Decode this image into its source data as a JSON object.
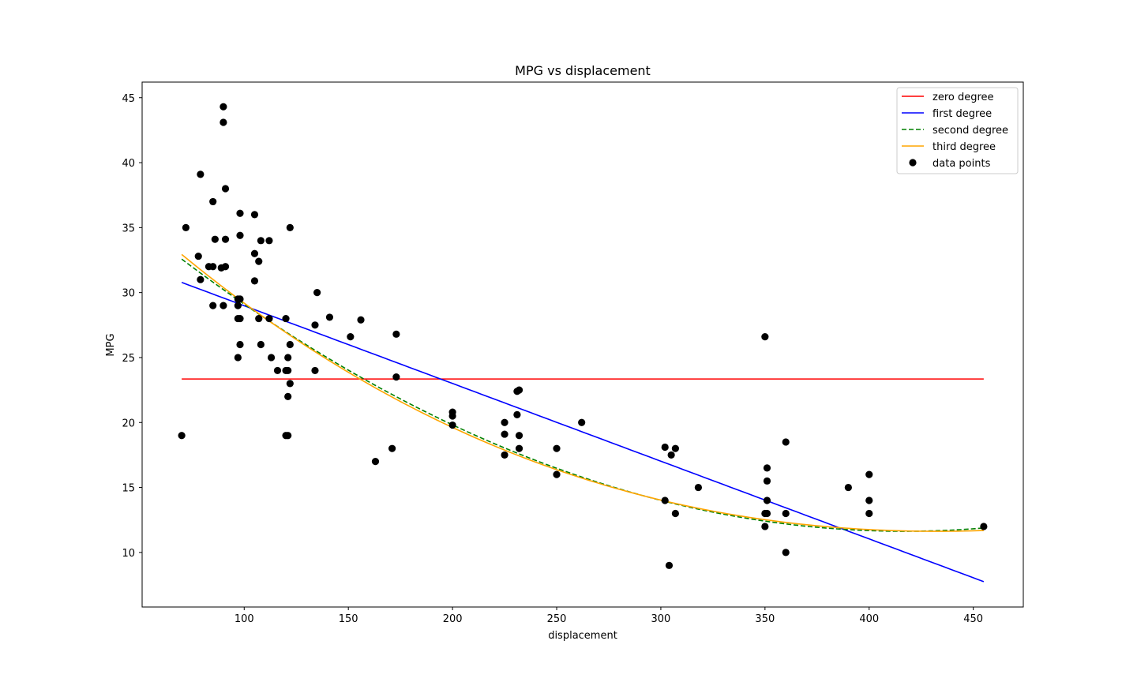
{
  "chart_data": {
    "type": "scatter",
    "title": "MPG vs displacement",
    "xlabel": "displacement",
    "ylabel": "MPG",
    "xlim": [
      51,
      474
    ],
    "ylim": [
      5.8,
      46.2
    ],
    "xticks": [
      100,
      150,
      200,
      250,
      300,
      350,
      400,
      450
    ],
    "yticks": [
      10,
      15,
      20,
      25,
      30,
      35,
      40,
      45
    ],
    "legend_position": "top-right",
    "grid": false,
    "series": [
      {
        "name": "zero degree",
        "kind": "line",
        "style": "solid",
        "color": "#ff0000",
        "coeffs": [
          23.35
        ],
        "x_range": [
          70,
          455
        ]
      },
      {
        "name": "first degree",
        "kind": "line",
        "style": "solid",
        "color": "#0000ff",
        "coeffs": [
          34.97,
          -0.05982
        ],
        "x_range": [
          70,
          455
        ]
      },
      {
        "name": "second degree",
        "kind": "line",
        "style": "dashed",
        "color": "#008000",
        "coeffs": [
          41.88,
          -0.1451,
          0.000174
        ],
        "x_range": [
          70,
          455
        ]
      },
      {
        "name": "third degree",
        "kind": "line",
        "style": "solid",
        "color": "#ffa500",
        "coeffs": [
          43.4,
          -0.1675,
          0.000265,
          -1.1e-07
        ],
        "x_range": [
          70,
          455
        ]
      },
      {
        "name": "data points",
        "kind": "scatter",
        "color": "#000000",
        "points": [
          [
            70,
            19
          ],
          [
            72,
            35
          ],
          [
            78,
            32.8
          ],
          [
            79,
            39.1
          ],
          [
            79,
            31
          ],
          [
            83,
            32
          ],
          [
            85,
            37
          ],
          [
            85,
            32
          ],
          [
            85,
            29
          ],
          [
            86,
            34.1
          ],
          [
            89,
            31.9
          ],
          [
            90,
            44.3
          ],
          [
            90,
            43.1
          ],
          [
            90,
            29
          ],
          [
            91,
            38
          ],
          [
            91,
            34.1
          ],
          [
            91,
            32
          ],
          [
            97,
            29.5
          ],
          [
            97,
            29
          ],
          [
            97,
            28
          ],
          [
            97,
            25
          ],
          [
            98,
            36.1
          ],
          [
            98,
            34.4
          ],
          [
            98,
            29.5
          ],
          [
            98,
            28
          ],
          [
            98,
            26
          ],
          [
            105,
            36
          ],
          [
            105,
            33
          ],
          [
            105,
            30.9
          ],
          [
            107,
            32.4
          ],
          [
            107,
            28
          ],
          [
            108,
            34
          ],
          [
            108,
            26
          ],
          [
            112,
            34
          ],
          [
            112,
            28
          ],
          [
            113,
            25
          ],
          [
            116,
            24
          ],
          [
            120,
            28
          ],
          [
            120,
            24
          ],
          [
            120,
            19
          ],
          [
            121,
            25
          ],
          [
            121,
            24
          ],
          [
            121,
            22
          ],
          [
            121,
            19
          ],
          [
            122,
            35
          ],
          [
            122,
            26
          ],
          [
            122,
            23
          ],
          [
            134,
            27.5
          ],
          [
            134,
            24
          ],
          [
            135,
            30
          ],
          [
            141,
            28.1
          ],
          [
            151,
            26.6
          ],
          [
            156,
            27.9
          ],
          [
            163,
            17
          ],
          [
            171,
            18
          ],
          [
            173,
            26.8
          ],
          [
            173,
            23.5
          ],
          [
            200,
            20.8
          ],
          [
            200,
            20.5
          ],
          [
            200,
            19.8
          ],
          [
            225,
            20
          ],
          [
            225,
            19.1
          ],
          [
            225,
            17.5
          ],
          [
            231,
            22.4
          ],
          [
            231,
            20.6
          ],
          [
            232,
            22.5
          ],
          [
            232,
            19
          ],
          [
            232,
            18
          ],
          [
            250,
            18
          ],
          [
            250,
            16
          ],
          [
            262,
            20
          ],
          [
            302,
            18.1
          ],
          [
            302,
            14
          ],
          [
            304,
            9
          ],
          [
            305,
            17.5
          ],
          [
            307,
            18
          ],
          [
            307,
            13
          ],
          [
            318,
            15
          ],
          [
            350,
            26.6
          ],
          [
            350,
            13
          ],
          [
            350,
            12
          ],
          [
            351,
            16.5
          ],
          [
            351,
            15.5
          ],
          [
            351,
            14
          ],
          [
            351,
            13
          ],
          [
            360,
            18.5
          ],
          [
            360,
            13
          ],
          [
            360,
            10
          ],
          [
            390,
            15
          ],
          [
            400,
            16
          ],
          [
            400,
            14
          ],
          [
            400,
            13
          ],
          [
            455,
            12
          ]
        ]
      }
    ]
  }
}
